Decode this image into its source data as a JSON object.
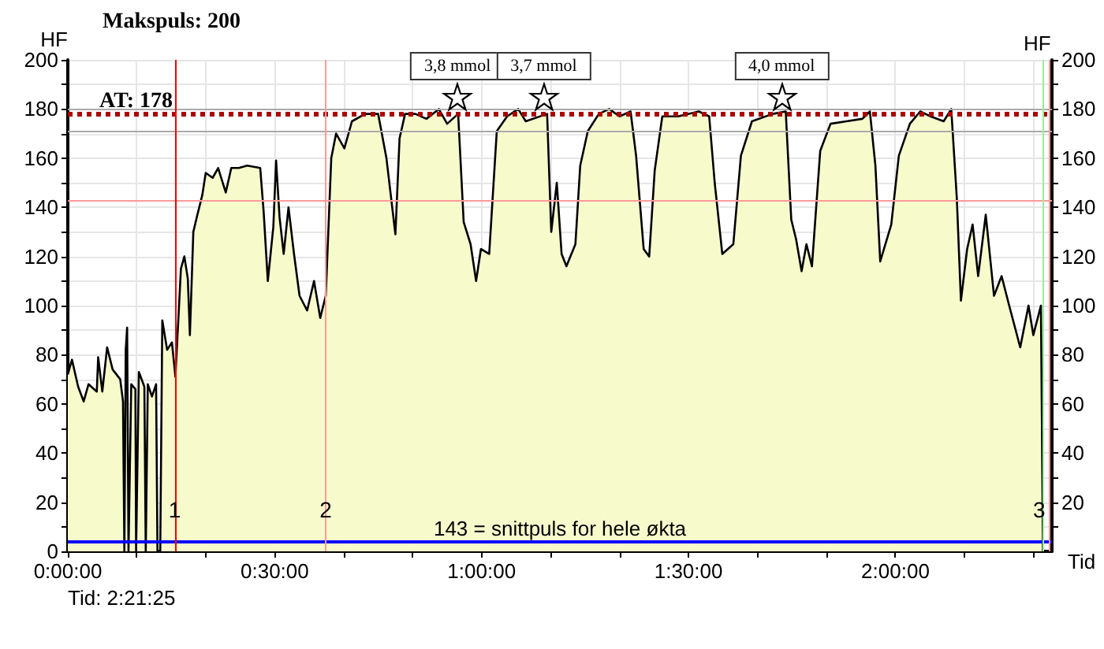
{
  "chart_data": {
    "type": "area",
    "title": "Makspuls: 200",
    "xlabel": "Tid",
    "ylabel": "HF",
    "y2label": "HF",
    "annotations": [
      "Tid: 2:21:25",
      {
        "text": "3,8 mmol",
        "x": 56.5,
        "y": 178
      },
      {
        "text": "3,7 mmol",
        "x": 69,
        "y": 178
      },
      {
        "text": "4,0 mmol",
        "x": 103.5,
        "y": 178
      },
      {
        "text": "1",
        "x": 15.5,
        "y": 12
      },
      {
        "text": "2",
        "x": 37.4,
        "y": 12
      },
      {
        "text": "3",
        "x": 142.2,
        "y": 12
      }
    ],
    "x": [
      0,
      0.6,
      1.5,
      2.3,
      3,
      4.2,
      4.4,
      5,
      5.7,
      6.5,
      7.6,
      8,
      8.2,
      8.4,
      8.6,
      8.8,
      9.2,
      9.8,
      9.9,
      10.3,
      11.1,
      11.3,
      11.6,
      12.2,
      12.8,
      13,
      13.4,
      13.7,
      14.4,
      15.1,
      15.6,
      16.4,
      16.9,
      17.4,
      17.7,
      18.2,
      18.7,
      19.5,
      20,
      21,
      21.8,
      22.9,
      23.7,
      24.8,
      26,
      27.9,
      28.4,
      29,
      29.8,
      30.2,
      30.7,
      31.3,
      32,
      32.8,
      33.6,
      34.7,
      35.7,
      36.6,
      37.4,
      38.2,
      38.9,
      40.1,
      41.2,
      43.1,
      45,
      46.2,
      47.5,
      48.1,
      48.9,
      50.4,
      52,
      53.8,
      55,
      56.6,
      57.4,
      58.4,
      59.2,
      59.9,
      61.1,
      62.2,
      63.7,
      65.3,
      66.4,
      69.5,
      70.1,
      70.9,
      71.6,
      72.3,
      73.6,
      74.3,
      75.4,
      77,
      78.5,
      80,
      81.6,
      82.4,
      83.5,
      84.3,
      85.1,
      86.2,
      88.5,
      91.5,
      93,
      93.8,
      94.9,
      96.5,
      97.6,
      99.2,
      102.2,
      104.1,
      104.9,
      105.6,
      106.4,
      107.1,
      107.9,
      109.1,
      110.6,
      112.9,
      115.2,
      116.3,
      117.1,
      117.8,
      119.4,
      120.5,
      122.1,
      123.6,
      125.1,
      127,
      128.1,
      128.9,
      129.5,
      130.4,
      131.2,
      132,
      133.1,
      134.3,
      135.4,
      136.5,
      138.1,
      139.3,
      140,
      141.1,
      141.4
    ],
    "series": [
      {
        "color": "#f7fbcc",
        "values": [
          72,
          78,
          67,
          61,
          68,
          65,
          79,
          65,
          83,
          74,
          70,
          61,
          0,
          82,
          91,
          0,
          68,
          66,
          0,
          73,
          67,
          0,
          68,
          63,
          68,
          0,
          0,
          94,
          82,
          85,
          71,
          115,
          120,
          111,
          88,
          130,
          136,
          145,
          154,
          152,
          156,
          146,
          156,
          156,
          157,
          156,
          138,
          110,
          132,
          159,
          136,
          121,
          140,
          121,
          104,
          98,
          110,
          95,
          104,
          160,
          170,
          164,
          175,
          178,
          178,
          160,
          129,
          168,
          178,
          178,
          176,
          180,
          174,
          178,
          134,
          125,
          110,
          123,
          121,
          171,
          177,
          180,
          175,
          178,
          130,
          150,
          121,
          116,
          125,
          157,
          171,
          178,
          180,
          177,
          179,
          161,
          123,
          120,
          155,
          177,
          177,
          179,
          177,
          150,
          121,
          125,
          161,
          175,
          178,
          179,
          135,
          127,
          114,
          125,
          116,
          163,
          174,
          175,
          176,
          179,
          157,
          118,
          133,
          161,
          174,
          179,
          177,
          175,
          180,
          144,
          102,
          123,
          133,
          112,
          137,
          104,
          112,
          100,
          83,
          100,
          88,
          100,
          0
        ]
      }
    ],
    "xlim": [
      0,
      142.7
    ],
    "xticks": [
      {
        "value": 0,
        "label": "0:00:00"
      },
      {
        "value": 10,
        "label": null
      },
      {
        "value": 20,
        "label": null
      },
      {
        "value": 30,
        "label": "0:30:00"
      },
      {
        "value": 40,
        "label": null
      },
      {
        "value": 50,
        "label": null
      },
      {
        "value": 60,
        "label": "1:00:00"
      },
      {
        "value": 70,
        "label": null
      },
      {
        "value": 80,
        "label": null
      },
      {
        "value": 90,
        "label": "1:30:00"
      },
      {
        "value": 100,
        "label": null
      },
      {
        "value": 110,
        "label": null
      },
      {
        "value": 120,
        "label": "2:00:00"
      },
      {
        "value": 130,
        "label": null
      },
      {
        "value": 140,
        "label": null
      }
    ],
    "ylim": [
      0,
      200
    ],
    "yticks": [
      0,
      {
        "value": 10,
        "label": null
      },
      20,
      {
        "value": 30,
        "label": null
      },
      40,
      {
        "value": 50,
        "label": null
      },
      60,
      {
        "value": 70,
        "label": null
      },
      80,
      {
        "value": 90,
        "label": null
      },
      100,
      {
        "value": 110,
        "label": null
      },
      120,
      {
        "value": 130,
        "label": null
      },
      140,
      {
        "value": 150,
        "label": null
      },
      160,
      {
        "value": 170,
        "label": null
      },
      180,
      {
        "value": 190,
        "label": null
      },
      200
    ],
    "y2lim": [
      0,
      200
    ],
    "y2ticks": [
      {
        "value": 10,
        "label": null
      },
      20,
      {
        "value": 30,
        "label": null
      },
      40,
      {
        "value": 50,
        "label": null
      },
      60,
      {
        "value": 70,
        "label": null
      },
      80,
      {
        "value": 90,
        "label": null
      },
      100,
      {
        "value": 110,
        "label": null
      },
      120,
      {
        "value": 130,
        "label": null
      },
      140,
      {
        "value": 150,
        "label": null
      },
      160,
      {
        "value": 170,
        "label": null
      },
      180,
      {
        "value": 190,
        "label": null
      },
      200
    ],
    "ref_lines": [
      {
        "axis": "y",
        "value": 178,
        "label": "AT: 178",
        "color": "#aa0000",
        "line_style": "dotted"
      },
      {
        "axis": "y",
        "value": 180,
        "label": null,
        "color": "#aaaaaa",
        "line_style": "solid"
      },
      {
        "axis": "y",
        "value": 171,
        "label": null,
        "color": "#aaaaaa",
        "line_style": "solid"
      },
      {
        "axis": "y",
        "value": 143,
        "label": null,
        "color": "#ff9999",
        "line_style": "solid"
      },
      {
        "axis": "y",
        "value": 4,
        "label": "143 = snittpuls for hele økta",
        "color": "#0000ff",
        "line_style": "solid"
      },
      {
        "axis": "x",
        "value": 15.5,
        "label": null,
        "color": "#ff0000",
        "line_style": "solid"
      },
      {
        "axis": "x",
        "value": 37.4,
        "label": null,
        "color": "#ff9999",
        "line_style": "solid"
      },
      {
        "axis": "x",
        "value": 142.2,
        "label": null,
        "color": "#ff9999",
        "line_style": "solid"
      },
      {
        "axis": "x",
        "value": 141.3,
        "label": null,
        "color": "#99ee99",
        "line_style": "solid"
      }
    ],
    "grid": true,
    "line_style": "solid",
    "marker": "none"
  }
}
